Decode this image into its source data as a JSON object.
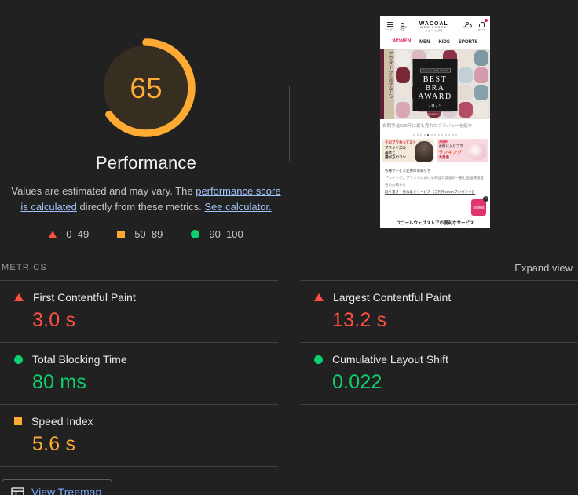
{
  "window": {
    "background": "#212121"
  },
  "colors": {
    "fail": "#ff4e43",
    "average": "#ffaa33",
    "pass": "#0ed06e",
    "link": "#9fc3f9",
    "button_link": "#76a9f9",
    "gauge_arc": "#ffaa33"
  },
  "gauge": {
    "score": "65",
    "title": "Performance",
    "percent": 65
  },
  "disclaimer": {
    "text_1": "Values are estimated and may vary. The ",
    "link_1": "performance score is calculated",
    "text_2": " directly from these metrics. ",
    "link_2": "See calculator."
  },
  "legend": {
    "fail_range": "0–49",
    "average_range": "50–89",
    "pass_range": "90–100"
  },
  "metrics_header": {
    "title": "METRICS",
    "expand_label": "Expand view"
  },
  "metrics": {
    "fcp": {
      "label": "First Contentful Paint",
      "value": "3.0 s",
      "status": "fail"
    },
    "lcp": {
      "label": "Largest Contentful Paint",
      "value": "13.2 s",
      "status": "fail"
    },
    "tbt": {
      "label": "Total Blocking Time",
      "value": "80 ms",
      "status": "pass"
    },
    "cls": {
      "label": "Cumulative Layout Shift",
      "value": "0.022",
      "status": "pass"
    },
    "si": {
      "label": "Speed Index",
      "value": "5.6 s",
      "status": "average"
    }
  },
  "treemap_button": {
    "label": "View Treemap"
  },
  "thumbnail": {
    "header": {
      "menu_label": "メニュー",
      "search_label": "検索",
      "logo_line1": "WACOAL",
      "logo_line2": "WEB STORE",
      "logo_line3": "ワコール公式通販",
      "login_label": "ログイン",
      "cart_label": "カート"
    },
    "nav": {
      "women": "WOMEN",
      "men": "MEN",
      "kids": "KIDS",
      "sports": "SPORTS"
    },
    "hero": {
      "side_text": "アウターから見えても",
      "award_brand": "WACOAL WEB STORE",
      "award_line1": "BEST",
      "award_line2": "BRA",
      "award_line3": "AWARD",
      "award_year": "2025",
      "award_sub": "総合・部門 年間売上ランキング",
      "palette": [
        "#efece8",
        "#d9b9c2",
        "#efece8",
        "#8c3347",
        "#e9e2da",
        "#7e98a4",
        "#7a2736",
        "#e3b7c1",
        "#d8cfc6",
        "#5f2130",
        "#c2cfd4",
        "#d49aab",
        "#eae4dd",
        "#70212f",
        "#c9b6a4",
        "#8e3a4c",
        "#e6dbd2",
        "#87a0ab",
        "#d8a9b5",
        "#e8e1d9",
        "#7c2b3b",
        "#dfc8cf",
        "#b44d63",
        "#ece7e1"
      ]
    },
    "caption": {
      "fragment": "自問考え",
      "main": "2025年に最も売れたブラジャーを紹介"
    },
    "carousel": {
      "count": 13,
      "active_index": 4
    },
    "banner_left": {
      "tag": "そのブラ合ってる?",
      "line1": "ブラサイズの",
      "line2": "基本と",
      "line3": "選び方のコツ"
    },
    "banner_right": {
      "tag": "大好評!!",
      "line1": "お気に入りブラ",
      "line2": "ランキング",
      "line3": "大発表"
    },
    "links": {
      "line1": "各種サービス変更のお知らせ",
      "line2": "「ウイング」ブランドにおける商品の発送の一部と配送環境変更のお知らせ",
      "line3": "取り置き・重ね着せサービス【ご利用500Ptプレゼント】"
    },
    "fab": {
      "label": "新規登録",
      "close": "×"
    },
    "footer": "ワコールウェブストアの便利なサービス"
  }
}
